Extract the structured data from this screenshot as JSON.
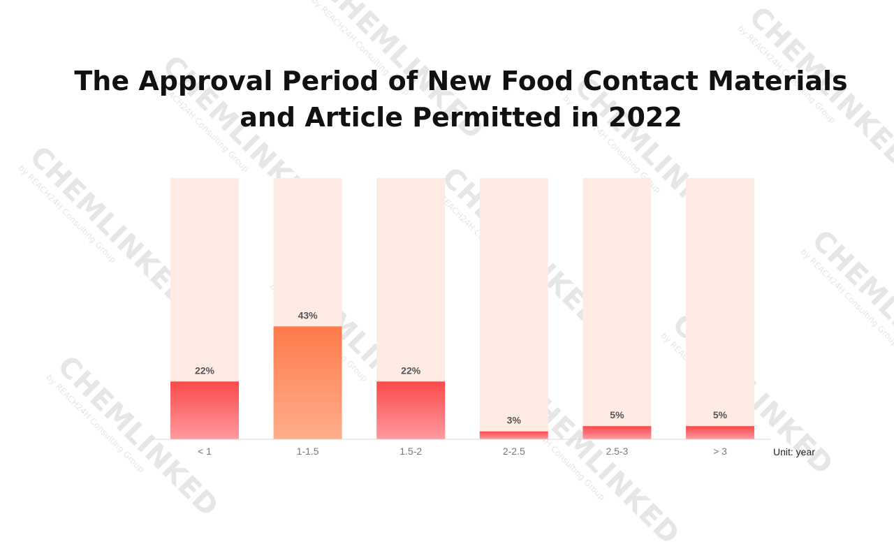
{
  "watermark": {
    "brand": "CHEMLINKED",
    "tagline": "by REACH24H Consulting Group"
  },
  "unit_label": "Unit: year",
  "colors": {
    "track": "#fdebe4",
    "bar_red_top": "#f94a4a",
    "bar_red_bottom": "#ff9aa0",
    "bar_orange_top": "#ff7a4a",
    "bar_orange_bottom": "#ffae8c",
    "label": "#555555",
    "axis": "#d9d9d9",
    "tick": "#777777"
  },
  "chart_data": {
    "type": "bar",
    "title": "The Approval Period of New Food Contact Materials and Article Permitted in 2022",
    "xlabel": "",
    "ylabel": "",
    "unit": "Unit: year",
    "categories": [
      "< 1",
      "1-1.5",
      "1.5-2",
      "2-2.5",
      "2.5-3",
      "> 3"
    ],
    "values": [
      22,
      43,
      22,
      3,
      5,
      5
    ],
    "value_labels": [
      "22%",
      "43%",
      "22%",
      "3%",
      "5%",
      "5%"
    ],
    "highlight_index": 1,
    "ylim": [
      0,
      100
    ],
    "grid": false,
    "legend": "none"
  }
}
